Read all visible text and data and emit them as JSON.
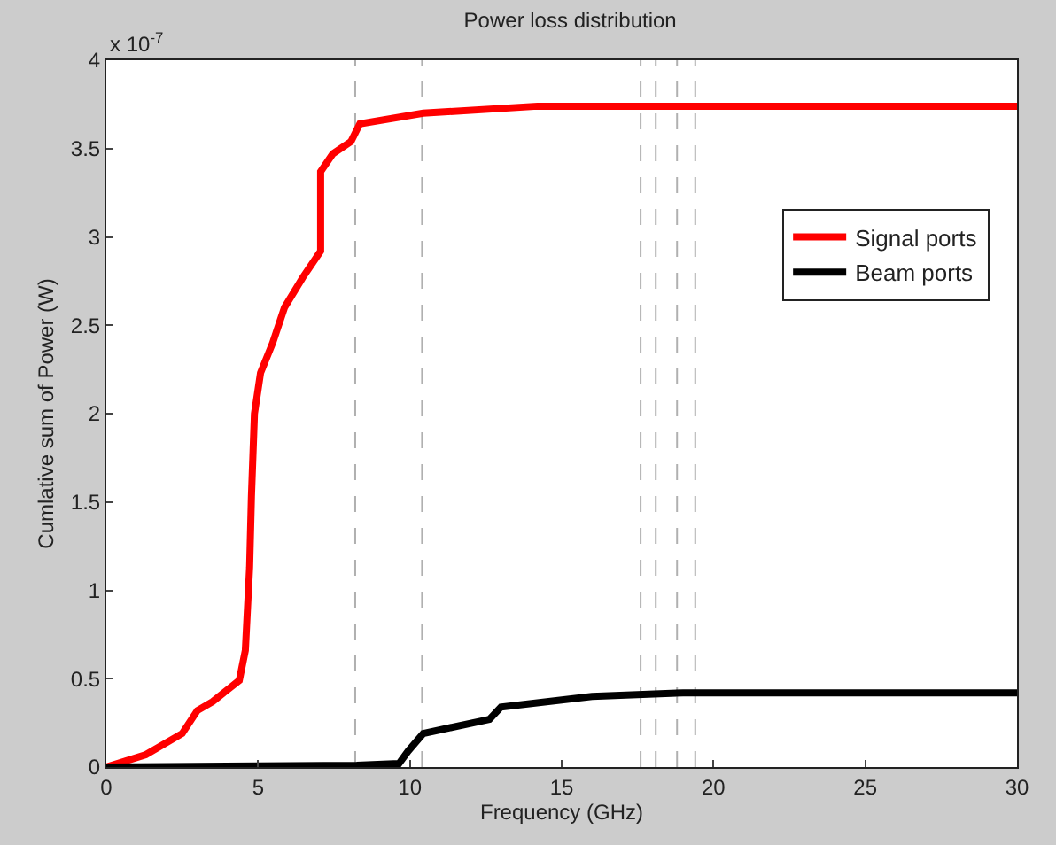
{
  "chart_data": {
    "type": "line",
    "title": "Power loss distribution",
    "xlabel": "Frequency (GHz)",
    "ylabel": "Cumlative sum of Power (W)",
    "annotations": [
      "x 10$^{-7}$"
    ],
    "xlim": [
      0,
      30
    ],
    "xticks": [
      0,
      5,
      10,
      15,
      20,
      25,
      30
    ],
    "ylim": [
      0,
      4
    ],
    "yticks": [
      0,
      0.5,
      1,
      1.5,
      2,
      2.5,
      3,
      3.5,
      4
    ],
    "grid": false,
    "legend": "right",
    "marker": "none",
    "line_style": "solid",
    "series": [
      {
        "name": "Signal ports",
        "color": "#ff0000",
        "x": [
          0,
          1.3,
          2.5,
          3.0,
          3.5,
          4.38,
          4.58,
          4.72,
          4.78,
          4.88,
          5.08,
          5.48,
          5.87,
          6.47,
          7.06,
          7.06,
          7.46,
          8.06,
          8.35,
          10.44,
          14.2,
          30
        ],
        "values": [
          0,
          0.07,
          0.19,
          0.32,
          0.37,
          0.49,
          0.66,
          1.13,
          1.53,
          2.0,
          2.23,
          2.4,
          2.6,
          2.77,
          2.92,
          3.37,
          3.47,
          3.54,
          3.64,
          3.7,
          3.74,
          3.74
        ]
      },
      {
        "name": "Beam ports",
        "color": "#000000",
        "x": [
          0,
          8.25,
          9.64,
          9.94,
          10.44,
          12.62,
          13.0,
          16.0,
          19.0,
          30
        ],
        "values": [
          0,
          0.01,
          0.02,
          0.09,
          0.19,
          0.27,
          0.34,
          0.4,
          0.42,
          0.42
        ]
      }
    ],
    "ref_lines": [
      {
        "axis": "x",
        "value": 8.2,
        "label": null,
        "color": "#b0b0b0",
        "line_style": "dashed"
      },
      {
        "axis": "x",
        "value": 10.4,
        "label": null,
        "color": "#b0b0b0",
        "line_style": "dashed"
      },
      {
        "axis": "x",
        "value": 17.6,
        "label": null,
        "color": "#b0b0b0",
        "line_style": "dashed"
      },
      {
        "axis": "x",
        "value": 18.1,
        "label": null,
        "color": "#b0b0b0",
        "line_style": "dashed"
      },
      {
        "axis": "x",
        "value": 18.8,
        "label": null,
        "color": "#b0b0b0",
        "line_style": "dashed"
      },
      {
        "axis": "x",
        "value": 19.4,
        "label": null,
        "color": "#b0b0b0",
        "line_style": "dashed"
      }
    ]
  }
}
